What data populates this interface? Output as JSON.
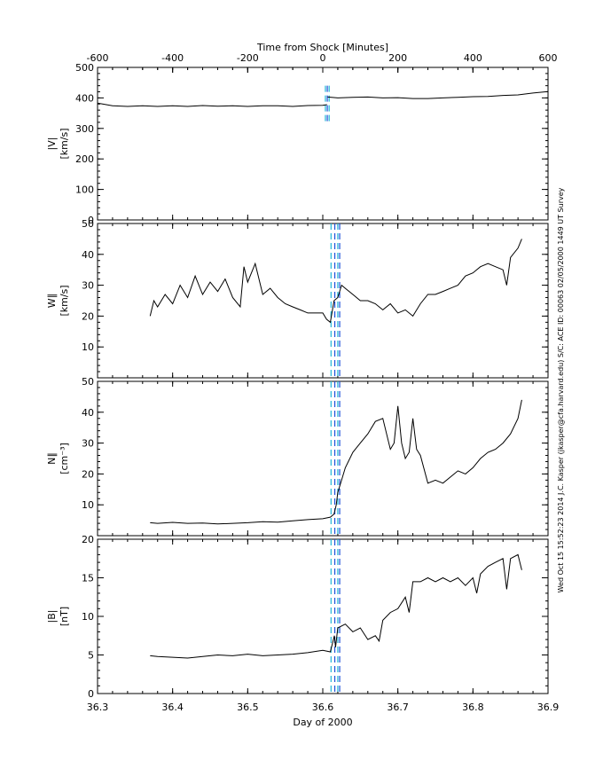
{
  "figure": {
    "top_axis_title": "Time from Shock [Minutes]",
    "bottom_axis_title": "Day of 2000",
    "side_annotation": "Wed Oct 15 15:52:23 2014   J.C. Kasper (jkasper@cfa.harvard.edu)   S/C: ACE ID: 00063 02/05/2000   1449 UT Survey"
  },
  "chart_data": {
    "type": "line",
    "shared_x": {
      "label": "Day of 2000",
      "range": [
        36.3,
        36.9
      ],
      "ticks": [
        "36.3",
        "36.4",
        "36.5",
        "36.6",
        "36.7",
        "36.8",
        "36.9"
      ]
    },
    "top_x": {
      "label": "Time from Shock [Minutes]",
      "range": [
        -600,
        600
      ],
      "ticks": [
        "-600",
        "-400",
        "-200",
        "0",
        "200",
        "400",
        "600"
      ]
    },
    "colors": {
      "trace": "#000000",
      "marker_dark": "#1f4fd8",
      "marker_light": "#21b6d6"
    },
    "panels": [
      {
        "id": "v",
        "ylabel_line1": "|V|",
        "ylabel_line2": "[km/s]",
        "ylim": [
          0,
          500
        ],
        "yticks": [
          "0",
          "100",
          "200",
          "300",
          "400",
          "500"
        ],
        "markers": [
          {
            "x": 36.6035,
            "kind": "light"
          },
          {
            "x": 36.606,
            "kind": "dark"
          },
          {
            "x": 36.6085,
            "kind": "light"
          }
        ],
        "segments": [
          {
            "x": [
              36.3,
              36.32,
              36.34,
              36.36,
              36.38,
              36.4,
              36.42,
              36.44,
              36.46,
              36.48,
              36.5,
              36.52,
              36.54,
              36.56,
              36.58,
              36.6,
              36.6055
            ],
            "y": [
              383,
              374,
              372,
              374,
              372,
              374,
              372,
              375,
              373,
              374,
              372,
              374,
              374,
              372,
              375,
              376,
              378
            ]
          },
          {
            "x": [
              36.6065,
              36.62,
              36.64,
              36.66,
              36.68,
              36.7,
              36.72,
              36.74,
              36.76,
              36.78,
              36.8,
              36.82,
              36.84,
              36.86,
              36.88,
              36.9
            ],
            "y": [
              403,
              400,
              402,
              403,
              400,
              401,
              398,
              398,
              400,
              402,
              404,
              405,
              408,
              410,
              416,
              421
            ]
          }
        ]
      },
      {
        "id": "w",
        "ylabel_line1": "W∥",
        "ylabel_line2": "[km/s]",
        "ylim": [
          0,
          50
        ],
        "yticks": [
          "10",
          "20",
          "30",
          "40",
          "50"
        ],
        "markers": [
          {
            "x": 36.611,
            "kind": "light"
          },
          {
            "x": 36.616,
            "kind": "dark"
          },
          {
            "x": 36.62,
            "kind": "light"
          },
          {
            "x": 36.6225,
            "kind": "dark"
          }
        ],
        "segments": [
          {
            "x": [
              36.37,
              36.375,
              36.38,
              36.39,
              36.4,
              36.41,
              36.42,
              36.43,
              36.44,
              36.45,
              36.46,
              36.47,
              36.48,
              36.49,
              36.495,
              36.5,
              36.51,
              36.52,
              36.53,
              36.54,
              36.55,
              36.56,
              36.57,
              36.58,
              36.59,
              36.6,
              36.605,
              36.61,
              36.615,
              36.62,
              36.625,
              36.63,
              36.64,
              36.65,
              36.66,
              36.67,
              36.68,
              36.69,
              36.7,
              36.71,
              36.72,
              36.73,
              36.74,
              36.75,
              36.76,
              36.77,
              36.78,
              36.79,
              36.8,
              36.81,
              36.82,
              36.83,
              36.84,
              36.845,
              36.85,
              36.86,
              36.865
            ],
            "y": [
              20,
              25,
              23,
              27,
              24,
              30,
              26,
              33,
              27,
              31,
              28,
              32,
              26,
              23,
              36,
              31,
              37,
              27,
              29,
              26,
              24,
              23,
              22,
              21,
              21,
              21,
              19,
              18,
              25,
              26,
              30,
              29,
              27,
              25,
              25,
              24,
              22,
              24,
              21,
              22,
              20,
              24,
              27,
              27,
              28,
              29,
              30,
              33,
              34,
              36,
              37,
              36,
              35,
              30,
              39,
              42,
              45
            ]
          }
        ]
      },
      {
        "id": "n",
        "ylabel_line1": "N∥",
        "ylabel_line2": "[cm⁻³]",
        "ylim": [
          0,
          50
        ],
        "yticks": [
          "10",
          "20",
          "30",
          "40",
          "50"
        ],
        "markers": [
          {
            "x": 36.611,
            "kind": "light"
          },
          {
            "x": 36.616,
            "kind": "dark"
          },
          {
            "x": 36.62,
            "kind": "light"
          },
          {
            "x": 36.6225,
            "kind": "dark"
          }
        ],
        "segments": [
          {
            "x": [
              36.37,
              36.38,
              36.4,
              36.42,
              36.44,
              36.46,
              36.48,
              36.5,
              36.52,
              36.54,
              36.56,
              36.58,
              36.6,
              36.61,
              36.615,
              36.618,
              36.62,
              36.625,
              36.63,
              36.64,
              36.65,
              36.66,
              36.67,
              36.68,
              36.69,
              36.695,
              36.7,
              36.705,
              36.71,
              36.715,
              36.72,
              36.725,
              36.73,
              36.74,
              36.75,
              36.76,
              36.77,
              36.78,
              36.79,
              36.8,
              36.81,
              36.82,
              36.83,
              36.84,
              36.85,
              36.86,
              36.865
            ],
            "y": [
              4.2,
              4.0,
              4.3,
              4.0,
              4.1,
              3.8,
              4.0,
              4.2,
              4.5,
              4.4,
              4.8,
              5.2,
              5.5,
              6.0,
              7.0,
              10,
              14,
              18,
              22,
              27,
              30,
              33,
              37,
              38,
              28,
              30,
              42,
              30,
              25,
              27,
              38,
              28,
              26,
              17,
              18,
              17,
              19,
              21,
              20,
              22,
              25,
              27,
              28,
              30,
              33,
              38,
              44
            ]
          }
        ]
      },
      {
        "id": "b",
        "ylabel_line1": "|B|",
        "ylabel_line2": "[nT]",
        "ylim": [
          0,
          20
        ],
        "yticks": [
          "0",
          "5",
          "10",
          "15",
          "20"
        ],
        "markers": [
          {
            "x": 36.611,
            "kind": "light"
          },
          {
            "x": 36.616,
            "kind": "dark"
          },
          {
            "x": 36.62,
            "kind": "light"
          },
          {
            "x": 36.6225,
            "kind": "dark"
          }
        ],
        "segments": [
          {
            "x": [
              36.37,
              36.38,
              36.4,
              36.42,
              36.44,
              36.46,
              36.48,
              36.5,
              36.52,
              36.54,
              36.56,
              36.58,
              36.6,
              36.61,
              36.6155,
              36.617,
              36.62,
              36.63,
              36.64,
              36.65,
              36.66,
              36.67,
              36.675,
              36.68,
              36.69,
              36.7,
              36.71,
              36.715,
              36.72,
              36.73,
              36.74,
              36.75,
              36.76,
              36.77,
              36.78,
              36.79,
              36.8,
              36.805,
              36.81,
              36.82,
              36.83,
              36.84,
              36.845,
              36.85,
              36.86,
              36.865
            ],
            "y": [
              4.9,
              4.8,
              4.7,
              4.6,
              4.8,
              5.0,
              4.9,
              5.1,
              4.9,
              5.0,
              5.1,
              5.3,
              5.6,
              5.4,
              7.5,
              6.0,
              8.5,
              9.0,
              8.0,
              8.5,
              7.0,
              7.5,
              6.8,
              9.5,
              10.5,
              11.0,
              12.5,
              10.5,
              14.5,
              14.5,
              15.0,
              14.5,
              15.0,
              14.5,
              15.0,
              14.0,
              15.0,
              13.0,
              15.5,
              16.5,
              17.0,
              17.5,
              13.5,
              17.5,
              18.0,
              16.0
            ]
          }
        ]
      }
    ]
  }
}
